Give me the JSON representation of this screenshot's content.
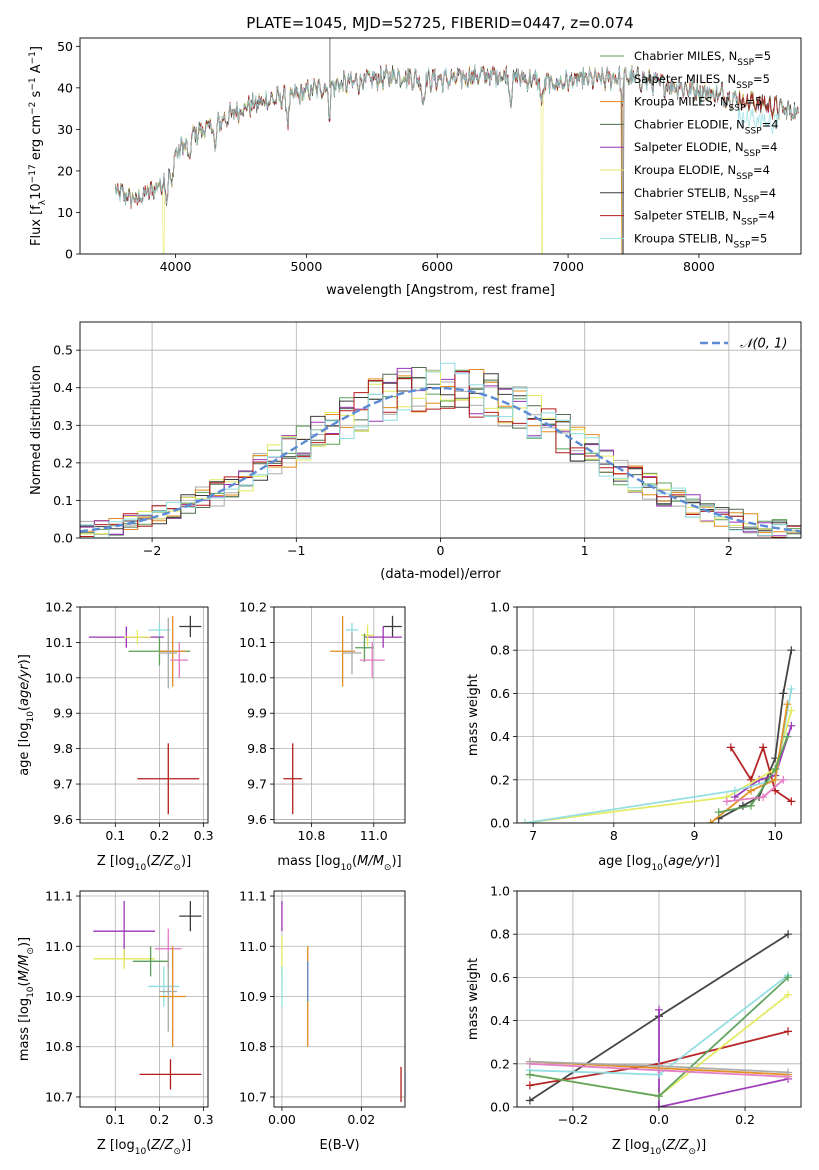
{
  "page_title": "PLATE=1045, MJD=52725, FIBERID=0447, z=0.074",
  "chart_data": [
    {
      "id": "spectrum",
      "type": "line",
      "title": "PLATE=1045, MJD=52725, FIBERID=0447, z=0.074",
      "xlabel": "wavelength [Angstrom, rest frame]",
      "ylabel": "Flux [f",
      "ylabel_parts": [
        "Flux [f",
        "λ",
        "10",
        "−17",
        " erg cm",
        "−2",
        " s",
        "−1",
        " A",
        "−1",
        "]"
      ],
      "xlim": [
        3270,
        8780
      ],
      "ylim": [
        0,
        52
      ],
      "xticks": [
        4000,
        5000,
        6000,
        7000,
        8000
      ],
      "yticks": [
        0,
        10,
        20,
        30,
        40,
        50
      ],
      "grid": false,
      "legend_position": "top-right",
      "series": [
        {
          "name": "Chabrier MILES",
          "nssp": "5",
          "color": "#5aa05a"
        },
        {
          "name": "Salpeter MILES",
          "nssp": "5",
          "color": "#a9a9a9"
        },
        {
          "name": "Kroupa MILES",
          "nssp": "5",
          "color": "#e08c1e"
        },
        {
          "name": "Chabrier ELODIE",
          "nssp": "4",
          "color": "#4f6f4f"
        },
        {
          "name": "Salpeter ELODIE",
          "nssp": "4",
          "color": "#9b34b5"
        },
        {
          "name": "Kroupa ELODIE",
          "nssp": "4",
          "color": "#e3ea5c"
        },
        {
          "name": "Chabrier STELIB",
          "nssp": "4",
          "color": "#3c3c3c"
        },
        {
          "name": "Salpeter STELIB",
          "nssp": "4",
          "color": "#b31b1b"
        },
        {
          "name": "Kroupa STELIB",
          "nssp": "5",
          "color": "#8fdde0"
        }
      ],
      "continuum_points": [
        [
          3540,
          15
        ],
        [
          3700,
          13
        ],
        [
          3900,
          17
        ],
        [
          4000,
          24
        ],
        [
          4150,
          29
        ],
        [
          4300,
          31
        ],
        [
          4500,
          35
        ],
        [
          4700,
          37
        ],
        [
          4900,
          38
        ],
        [
          5100,
          40
        ],
        [
          5300,
          41
        ],
        [
          5500,
          42
        ],
        [
          5700,
          43
        ],
        [
          5900,
          42
        ],
        [
          6100,
          42
        ],
        [
          6300,
          43
        ],
        [
          6500,
          43
        ],
        [
          6700,
          42
        ],
        [
          6900,
          41
        ],
        [
          7100,
          42
        ],
        [
          7300,
          42
        ],
        [
          7400,
          43
        ],
        [
          7700,
          41
        ],
        [
          7900,
          40
        ],
        [
          8200,
          38
        ],
        [
          8500,
          36
        ],
        [
          8750,
          34
        ]
      ],
      "absorption_lines": [
        3934,
        3969,
        4102,
        4304,
        4861,
        5175,
        5890,
        6563,
        6800,
        7410
      ],
      "spikes": [
        5180
      ]
    },
    {
      "id": "residual-histogram",
      "type": "bar",
      "xlabel": "(data-model)/error",
      "ylabel": "Normed distribution",
      "xlim": [
        -2.5,
        2.5
      ],
      "ylim": [
        0,
        0.575
      ],
      "xticks": [
        -2,
        -1,
        0,
        1,
        2
      ],
      "xtick_labels": [
        "−2",
        "−1",
        "0",
        "1",
        "2"
      ],
      "yticks": [
        0.0,
        0.1,
        0.2,
        0.3,
        0.4,
        0.5
      ],
      "ytick_labels": [
        "0.0",
        "0.1",
        "0.2",
        "0.3",
        "0.4",
        "0.5"
      ],
      "grid": true,
      "legend_position": "top-right",
      "reference_curve": {
        "label": "𝒩(0, 1)",
        "color": "#5b8bd6",
        "mean": 0,
        "sigma": 1
      },
      "bin_width": 0.1,
      "series_colors": [
        "#5aa05a",
        "#a9a9a9",
        "#e08c1e",
        "#4f6f4f",
        "#9b34b5",
        "#e3ea5c",
        "#3c3c3c",
        "#b31b1b",
        "#8fdde0"
      ],
      "noise_amplitude": 0.045
    },
    {
      "id": "age-vs-Z",
      "type": "scatter",
      "xlabel": "Z [log",
      "xlabel_parts": [
        "Z [log",
        "10",
        "(Z/Z",
        "⊙",
        ")]"
      ],
      "ylabel_parts": [
        "age  [log",
        "10",
        "(age/yr)]"
      ],
      "xlim": [
        0.02,
        0.31
      ],
      "ylim": [
        9.59,
        10.2
      ],
      "xticks": [
        0.1,
        0.2,
        0.3
      ],
      "xtick_labels": [
        "0.1",
        "0.2",
        "0.3"
      ],
      "yticks": [
        9.6,
        9.7,
        9.8,
        9.9,
        10.0,
        10.1,
        10.2
      ],
      "ytick_labels": [
        "9.6",
        "9.7",
        "9.8",
        "9.9",
        "10.0",
        "10.1",
        "10.2"
      ],
      "grid": true,
      "points": [
        {
          "x": 0.27,
          "y": 10.145,
          "xerr": 0.025,
          "yerr": 0.03,
          "color": "#3c3c3c"
        },
        {
          "x": 0.2,
          "y": 10.135,
          "xerr": 0.025,
          "yerr": 0.02,
          "color": "#8fdde0"
        },
        {
          "x": 0.125,
          "y": 10.115,
          "xerr": 0.085,
          "yerr": 0.03,
          "color": "#9b34b5"
        },
        {
          "x": 0.15,
          "y": 10.115,
          "xerr": 0.03,
          "yerr": 0.02,
          "color": "#e3ea5c"
        },
        {
          "x": 0.2,
          "y": 10.075,
          "xerr": 0.07,
          "yerr": 0.04,
          "color": "#5aa05a"
        },
        {
          "x": 0.23,
          "y": 10.075,
          "xerr": 0.03,
          "yerr": 0.1,
          "color": "#e08c1e"
        },
        {
          "x": 0.22,
          "y": 10.07,
          "xerr": 0.02,
          "yerr": 0.1,
          "color": "#a9a9a9"
        },
        {
          "x": 0.245,
          "y": 10.05,
          "xerr": 0.02,
          "yerr": 0.05,
          "color": "#e377c2"
        },
        {
          "x": 0.22,
          "y": 9.715,
          "xerr": 0.07,
          "yerr": 0.1,
          "color": "#b31b1b"
        }
      ]
    },
    {
      "id": "age-vs-mass",
      "type": "scatter",
      "xlabel_parts": [
        "mass [log",
        "10",
        "(M/M",
        "⊙",
        ")]"
      ],
      "xlim": [
        10.68,
        11.1
      ],
      "ylim": [
        9.59,
        10.2
      ],
      "xticks": [
        10.8,
        11.0
      ],
      "xtick_labels": [
        "10.8",
        "11.0"
      ],
      "yticks": [
        9.6,
        9.7,
        9.8,
        9.9,
        10.0,
        10.1,
        10.2
      ],
      "ytick_labels": [
        "9.6",
        "9.7",
        "9.8",
        "9.9",
        "10.0",
        "10.1",
        "10.2"
      ],
      "grid": true,
      "points": [
        {
          "x": 11.06,
          "y": 10.145,
          "xerr": 0.03,
          "yerr": 0.03,
          "color": "#3c3c3c"
        },
        {
          "x": 10.93,
          "y": 10.135,
          "xerr": 0.02,
          "yerr": 0.02,
          "color": "#8fdde0"
        },
        {
          "x": 11.03,
          "y": 10.115,
          "xerr": 0.06,
          "yerr": 0.03,
          "color": "#9b34b5"
        },
        {
          "x": 10.98,
          "y": 10.12,
          "xerr": 0.02,
          "yerr": 0.03,
          "color": "#e3ea5c"
        },
        {
          "x": 10.97,
          "y": 10.085,
          "xerr": 0.03,
          "yerr": 0.04,
          "color": "#5aa05a"
        },
        {
          "x": 10.9,
          "y": 10.075,
          "xerr": 0.04,
          "yerr": 0.1,
          "color": "#e08c1e"
        },
        {
          "x": 10.93,
          "y": 10.07,
          "xerr": 0.03,
          "yerr": 0.06,
          "color": "#a9a9a9"
        },
        {
          "x": 10.995,
          "y": 10.05,
          "xerr": 0.04,
          "yerr": 0.05,
          "color": "#e377c2"
        },
        {
          "x": 10.74,
          "y": 9.715,
          "xerr": 0.03,
          "yerr": 0.1,
          "color": "#b31b1b"
        }
      ]
    },
    {
      "id": "mass-weight-vs-age",
      "type": "line",
      "xlabel_parts": [
        "age  [log",
        "10",
        "(age/yr)]"
      ],
      "ylabel": "mass weight",
      "xlim": [
        6.8,
        10.32
      ],
      "ylim": [
        0,
        1.0
      ],
      "xticks": [
        7,
        8,
        9,
        10
      ],
      "xtick_labels": [
        "7",
        "8",
        "9",
        "10"
      ],
      "yticks": [
        0.0,
        0.2,
        0.4,
        0.6,
        0.8,
        1.0
      ],
      "ytick_labels": [
        "0.0",
        "0.2",
        "0.4",
        "0.6",
        "0.8",
        "1.0"
      ],
      "grid": true,
      "series": [
        {
          "color": "#3c3c3c",
          "x": [
            9.3,
            9.6,
            9.8,
            10.0,
            10.1,
            10.2
          ],
          "y": [
            0.02,
            0.08,
            0.12,
            0.3,
            0.6,
            0.8
          ]
        },
        {
          "color": "#b31b1b",
          "x": [
            9.45,
            9.7,
            9.85,
            10.0,
            10.2
          ],
          "y": [
            0.35,
            0.2,
            0.35,
            0.15,
            0.1
          ]
        },
        {
          "color": "#9b34b5",
          "x": [
            9.5,
            9.8,
            10.0,
            10.2
          ],
          "y": [
            0.12,
            0.2,
            0.22,
            0.45
          ]
        },
        {
          "color": "#e3ea5c",
          "x": [
            6.9,
            9.4,
            10.0,
            10.2
          ],
          "y": [
            0.0,
            0.12,
            0.25,
            0.52
          ]
        },
        {
          "color": "#8fdde0",
          "x": [
            6.9,
            9.5,
            10.0,
            10.2
          ],
          "y": [
            0.0,
            0.15,
            0.2,
            0.62
          ]
        },
        {
          "color": "#e08c1e",
          "x": [
            9.2,
            9.7,
            10.0,
            10.15
          ],
          "y": [
            0.0,
            0.15,
            0.2,
            0.55
          ]
        },
        {
          "color": "#5aa05a",
          "x": [
            9.3,
            9.7,
            10.0,
            10.15
          ],
          "y": [
            0.05,
            0.08,
            0.25,
            0.4
          ]
        },
        {
          "color": "#e377c2",
          "x": [
            9.4,
            9.85,
            10.1
          ],
          "y": [
            0.1,
            0.12,
            0.2
          ]
        }
      ]
    },
    {
      "id": "mass-vs-Z",
      "type": "scatter",
      "xlabel_parts": [
        "Z [log",
        "10",
        "(Z/Z",
        "⊙",
        ")]"
      ],
      "ylabel_parts": [
        "mass [log",
        "10",
        "(M/M",
        "⊙",
        ")]"
      ],
      "xlim": [
        0.02,
        0.31
      ],
      "ylim": [
        10.68,
        11.11
      ],
      "xticks": [
        0.1,
        0.2,
        0.3
      ],
      "xtick_labels": [
        "0.1",
        "0.2",
        "0.3"
      ],
      "yticks": [
        10.7,
        10.8,
        10.9,
        11.0,
        11.1
      ],
      "ytick_labels": [
        "10.7",
        "10.8",
        "10.9",
        "11.0",
        "11.1"
      ],
      "grid": true,
      "points": [
        {
          "x": 0.27,
          "y": 11.06,
          "xerr": 0.025,
          "yerr": 0.03,
          "color": "#3c3c3c"
        },
        {
          "x": 0.12,
          "y": 11.03,
          "xerr": 0.07,
          "yerr": 0.06,
          "color": "#9b34b5"
        },
        {
          "x": 0.22,
          "y": 10.995,
          "xerr": 0.03,
          "yerr": 0.04,
          "color": "#e377c2"
        },
        {
          "x": 0.12,
          "y": 10.975,
          "xerr": 0.07,
          "yerr": 0.02,
          "color": "#e3ea5c"
        },
        {
          "x": 0.18,
          "y": 10.97,
          "xerr": 0.04,
          "yerr": 0.03,
          "color": "#5aa05a"
        },
        {
          "x": 0.21,
          "y": 10.92,
          "xerr": 0.035,
          "yerr": 0.04,
          "color": "#8fdde0"
        },
        {
          "x": 0.23,
          "y": 10.9,
          "xerr": 0.03,
          "yerr": 0.1,
          "color": "#e08c1e"
        },
        {
          "x": 0.22,
          "y": 10.91,
          "xerr": 0.02,
          "yerr": 0.08,
          "color": "#a9a9a9"
        },
        {
          "x": 0.225,
          "y": 10.745,
          "xerr": 0.07,
          "yerr": 0.03,
          "color": "#b31b1b"
        }
      ]
    },
    {
      "id": "mass-vs-ebv",
      "type": "scatter",
      "xlabel": "E(B-V)",
      "xlim": [
        -0.002,
        0.031
      ],
      "ylim": [
        10.68,
        11.11
      ],
      "xticks": [
        0.0,
        0.02
      ],
      "xtick_labels": [
        "0.00",
        "0.02"
      ],
      "yticks": [
        10.7,
        10.8,
        10.9,
        11.0,
        11.1
      ],
      "ytick_labels": [
        "10.7",
        "10.8",
        "10.9",
        "11.0",
        "11.1"
      ],
      "grid": true,
      "points": [
        {
          "x": 0.0,
          "y": 11.06,
          "xerr": 0,
          "yerr": 0.03,
          "color": "#9b34b5"
        },
        {
          "x": 0.0,
          "y": 10.98,
          "xerr": 0,
          "yerr": 0.04,
          "color": "#e3ea5c"
        },
        {
          "x": 0.0,
          "y": 10.92,
          "xerr": 0,
          "yerr": 0.04,
          "color": "#8fdde0"
        },
        {
          "x": 0.0065,
          "y": 10.9,
          "xerr": 0,
          "yerr": 0.1,
          "color": "#e08c1e"
        },
        {
          "x": 0.0065,
          "y": 10.93,
          "xerr": 0,
          "yerr": 0.04,
          "color": "#5b8bd6"
        },
        {
          "x": 0.03,
          "y": 10.725,
          "xerr": 0,
          "yerr": 0.035,
          "color": "#b31b1b"
        }
      ]
    },
    {
      "id": "mass-weight-vs-Z",
      "type": "line",
      "xlabel_parts": [
        "Z [log",
        "10",
        "(Z/Z",
        "⊙",
        ")]"
      ],
      "ylabel": "mass weight",
      "xlim": [
        -0.33,
        0.33
      ],
      "ylim": [
        0,
        1.0
      ],
      "xticks": [
        -0.2,
        0.0,
        0.2
      ],
      "xtick_labels": [
        "−0.2",
        "0.0",
        "0.2"
      ],
      "yticks": [
        0.0,
        0.2,
        0.4,
        0.6,
        0.8,
        1.0
      ],
      "ytick_labels": [
        "0.0",
        "0.2",
        "0.4",
        "0.6",
        "0.8",
        "1.0"
      ],
      "grid": true,
      "series": [
        {
          "color": "#3c3c3c",
          "x": [
            -0.3,
            0.0,
            0.3
          ],
          "y": [
            0.03,
            0.42,
            0.8
          ]
        },
        {
          "color": "#b31b1b",
          "x": [
            -0.3,
            0.0,
            0.3
          ],
          "y": [
            0.1,
            0.2,
            0.35
          ]
        },
        {
          "color": "#9b34b5",
          "x": [
            0.0,
            0.0,
            0.3
          ],
          "y": [
            0.45,
            0.0,
            0.13
          ]
        },
        {
          "color": "#e3ea5c",
          "x": [
            -0.3,
            0.0,
            0.3
          ],
          "y": [
            0.15,
            0.05,
            0.52
          ]
        },
        {
          "color": "#8fdde0",
          "x": [
            -0.3,
            0.0,
            0.3
          ],
          "y": [
            0.17,
            0.15,
            0.61
          ]
        },
        {
          "color": "#5aa05a",
          "x": [
            -0.3,
            0.0,
            0.3
          ],
          "y": [
            0.15,
            0.05,
            0.6
          ]
        },
        {
          "color": "#e08c1e",
          "x": [
            -0.3,
            0.0,
            0.3
          ],
          "y": [
            0.21,
            0.18,
            0.15
          ]
        },
        {
          "color": "#e377c2",
          "x": [
            -0.3,
            0.0,
            0.3
          ],
          "y": [
            0.2,
            0.17,
            0.14
          ]
        },
        {
          "color": "#a9a9a9",
          "x": [
            -0.3,
            0.0,
            0.3
          ],
          "y": [
            0.21,
            0.19,
            0.16
          ]
        }
      ]
    }
  ]
}
